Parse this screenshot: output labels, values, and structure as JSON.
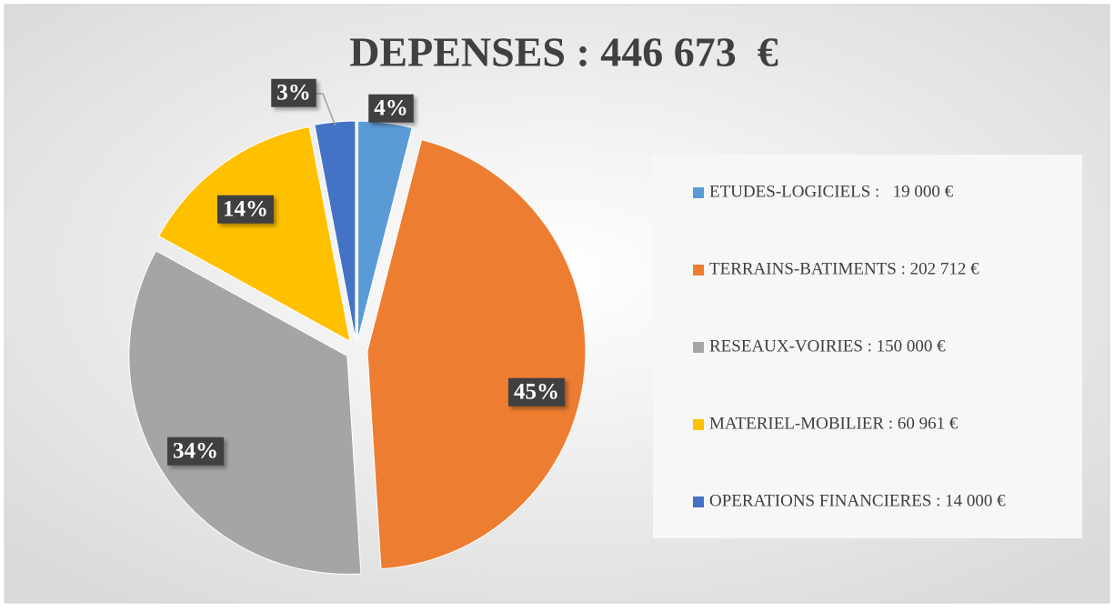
{
  "chart_data": {
    "type": "pie",
    "title": "DEPENSES : 446 673  €",
    "categories": [
      "ETUDES-LOGICIELS :   19 000 €",
      "TERRAINS-BATIMENTS : 202 712 €",
      "RESEAUX-VOIRIES : 150 000 €",
      "MATERIEL-MOBILIER : 60 961 €",
      "OPERATIONS FINANCIERES : 14 000 €"
    ],
    "values": [
      4,
      45,
      34,
      14,
      3
    ],
    "value_labels": [
      "4%",
      "45%",
      "34%",
      "14%",
      "3%"
    ],
    "colors": [
      "#5b9bd5",
      "#ed7d31",
      "#a5a5a5",
      "#ffc000",
      "#4472c4"
    ],
    "legend": "right"
  }
}
